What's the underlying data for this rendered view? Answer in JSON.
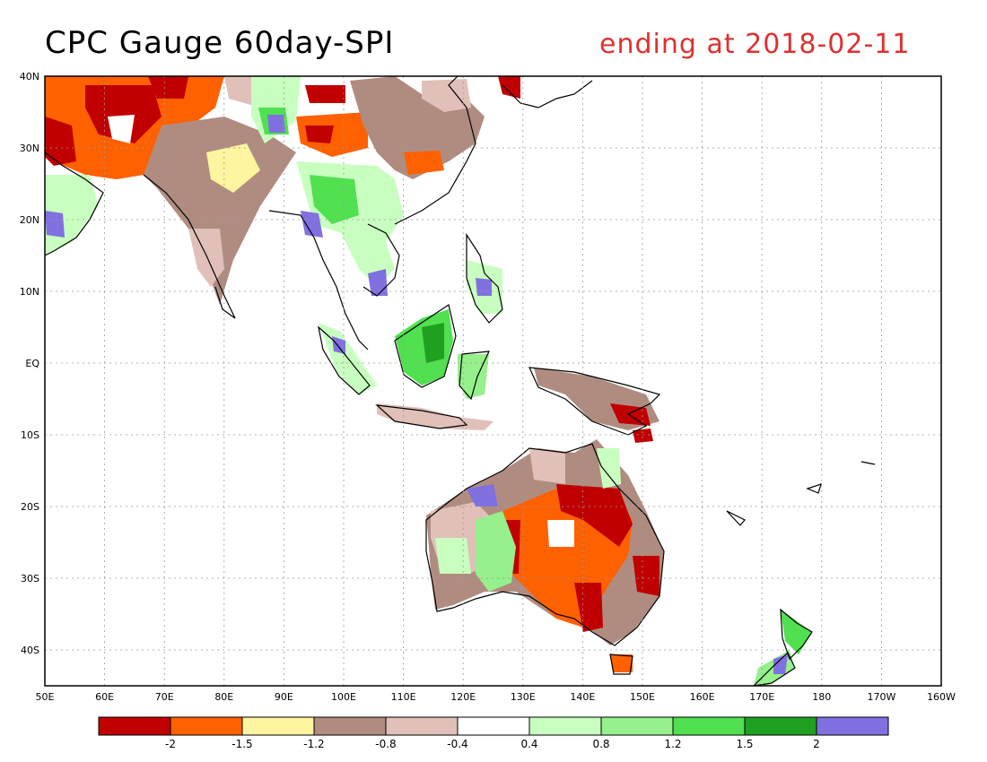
{
  "title": "CPC Gauge 60day-SPI",
  "subtitle": "ending at 2018-02-11",
  "map": {
    "lon_labels": [
      "50E",
      "60E",
      "70E",
      "80E",
      "90E",
      "100E",
      "110E",
      "120E",
      "130E",
      "140E",
      "150E",
      "160E",
      "170E",
      "180",
      "170W",
      "160W"
    ],
    "lat_labels": [
      "40N",
      "30N",
      "20N",
      "10N",
      "EQ",
      "10S",
      "20S",
      "30S",
      "40S"
    ],
    "lon_range": [
      50,
      200
    ],
    "lat_range": [
      -45,
      40
    ],
    "grid": true
  },
  "legend": {
    "colors": [
      "#c00000",
      "#ff6000",
      "#fff5a0",
      "#b08c80",
      "#e0c0b8",
      "#ffffff",
      "#c8ffc0",
      "#96f08c",
      "#50e050",
      "#20a020",
      "#8070e0"
    ],
    "labels": [
      "-2",
      "-1.5",
      "-1.2",
      "-0.8",
      "-0.4",
      "0.4",
      "0.8",
      "1.2",
      "1.5",
      "2"
    ]
  }
}
